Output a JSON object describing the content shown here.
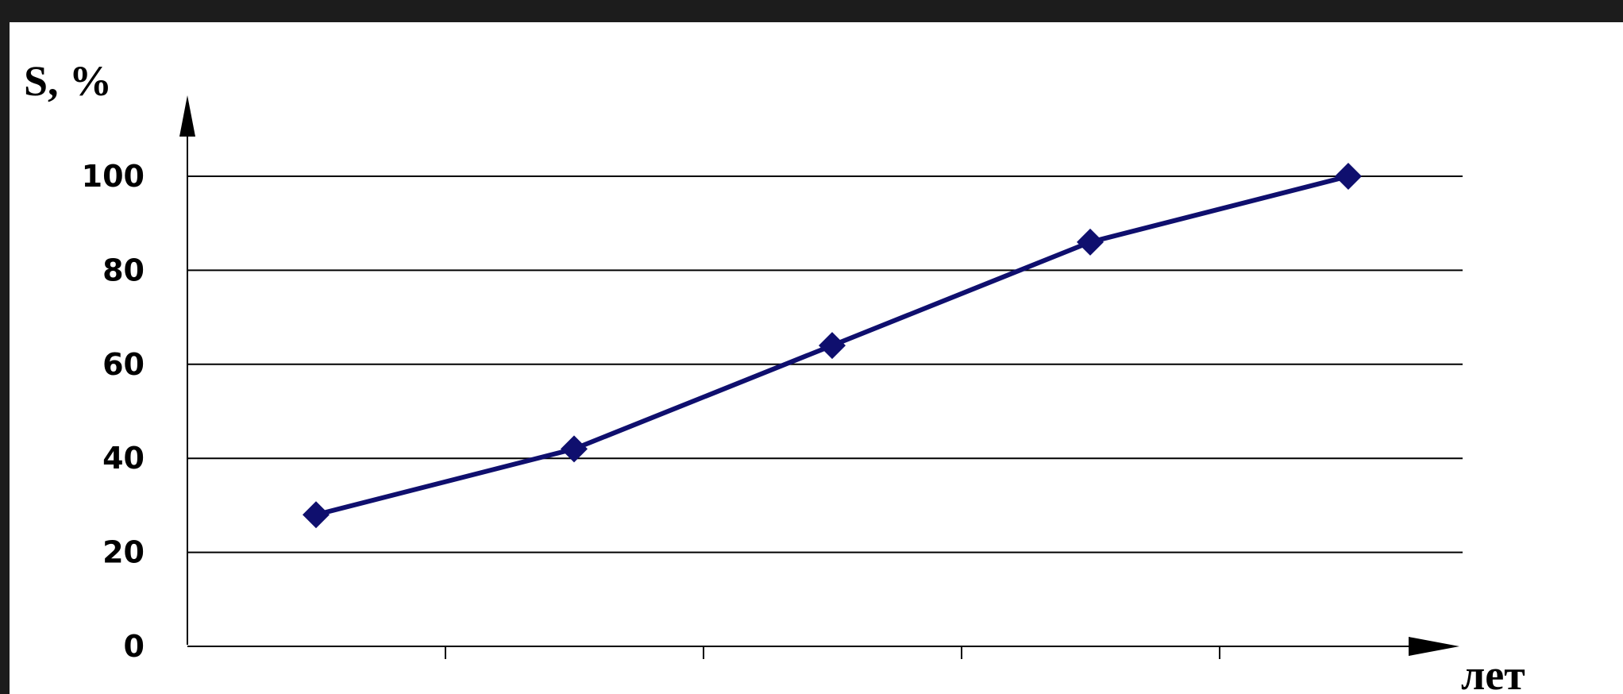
{
  "chart_data": {
    "type": "line",
    "title": "",
    "ylabel": "S, %",
    "xlabel": "лет",
    "ylim": [
      0,
      100
    ],
    "yticks": [
      "0",
      "20",
      "40",
      "60",
      "80",
      "100"
    ],
    "categories": [
      "",
      "",
      "",
      "",
      ""
    ],
    "series": [
      {
        "values": [
          28,
          42,
          64,
          86,
          100
        ]
      }
    ],
    "grid": "horizontal",
    "colors": {
      "line": "#0f0f6e",
      "grid": "#000000",
      "axis": "#000000"
    }
  }
}
